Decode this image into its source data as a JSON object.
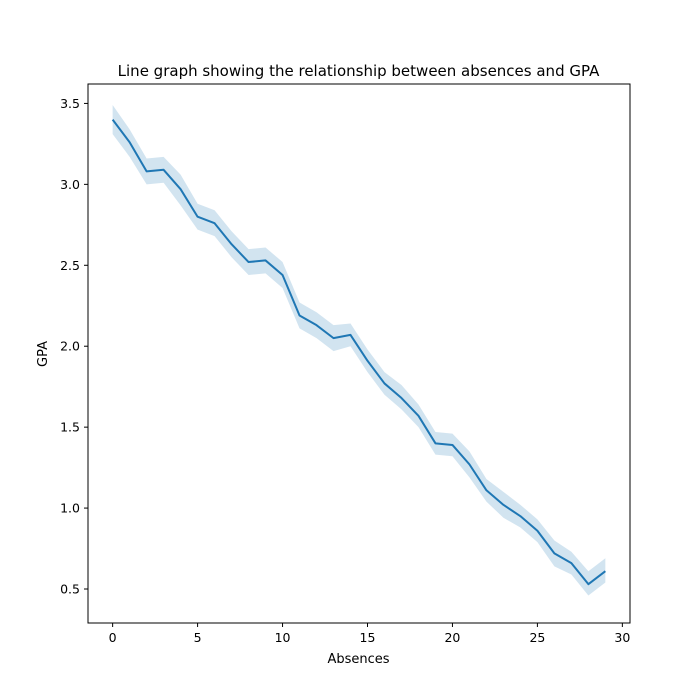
{
  "chart_data": {
    "type": "line",
    "title": "Line graph showing the relationship between absences and GPA",
    "xlabel": "Absences",
    "ylabel": "GPA",
    "xlim": [
      -1.45,
      30.45
    ],
    "ylim": [
      0.29,
      3.62
    ],
    "xticks": [
      0,
      5,
      10,
      15,
      20,
      25,
      30
    ],
    "yticks": [
      0.5,
      1.0,
      1.5,
      2.0,
      2.5,
      3.0,
      3.5
    ],
    "xtick_labels": [
      "0",
      "5",
      "10",
      "15",
      "20",
      "25",
      "30"
    ],
    "ytick_labels": [
      "0.5",
      "1.0",
      "1.5",
      "2.0",
      "2.5",
      "3.0",
      "3.5"
    ],
    "grid": false,
    "line_color": "#1f77b4",
    "band_color": "#1f77b4",
    "series": [
      {
        "x": [
          0,
          1,
          2,
          3,
          4,
          5,
          6,
          7,
          8,
          9,
          10,
          11,
          12,
          13,
          14,
          15,
          16,
          17,
          18,
          19,
          20,
          21,
          22,
          23,
          24,
          25,
          26,
          27,
          28,
          29
        ],
        "values": [
          3.4,
          3.26,
          3.08,
          3.09,
          2.97,
          2.8,
          2.76,
          2.63,
          2.52,
          2.53,
          2.44,
          2.19,
          2.13,
          2.05,
          2.07,
          1.91,
          1.77,
          1.68,
          1.57,
          1.4,
          1.39,
          1.27,
          1.11,
          1.02,
          0.95,
          0.86,
          0.72,
          0.66,
          0.53,
          0.61
        ],
        "ci_low": [
          3.31,
          3.17,
          3.0,
          3.01,
          2.87,
          2.72,
          2.68,
          2.55,
          2.44,
          2.45,
          2.36,
          2.11,
          2.05,
          1.97,
          2.0,
          1.84,
          1.7,
          1.61,
          1.5,
          1.33,
          1.32,
          1.19,
          1.04,
          0.94,
          0.88,
          0.79,
          0.64,
          0.59,
          0.46,
          0.54
        ],
        "ci_high": [
          3.49,
          3.34,
          3.16,
          3.17,
          3.06,
          2.88,
          2.84,
          2.71,
          2.6,
          2.61,
          2.52,
          2.27,
          2.21,
          2.13,
          2.14,
          1.98,
          1.84,
          1.76,
          1.64,
          1.47,
          1.46,
          1.35,
          1.18,
          1.1,
          1.02,
          0.93,
          0.8,
          0.73,
          0.61,
          0.69
        ]
      }
    ]
  }
}
